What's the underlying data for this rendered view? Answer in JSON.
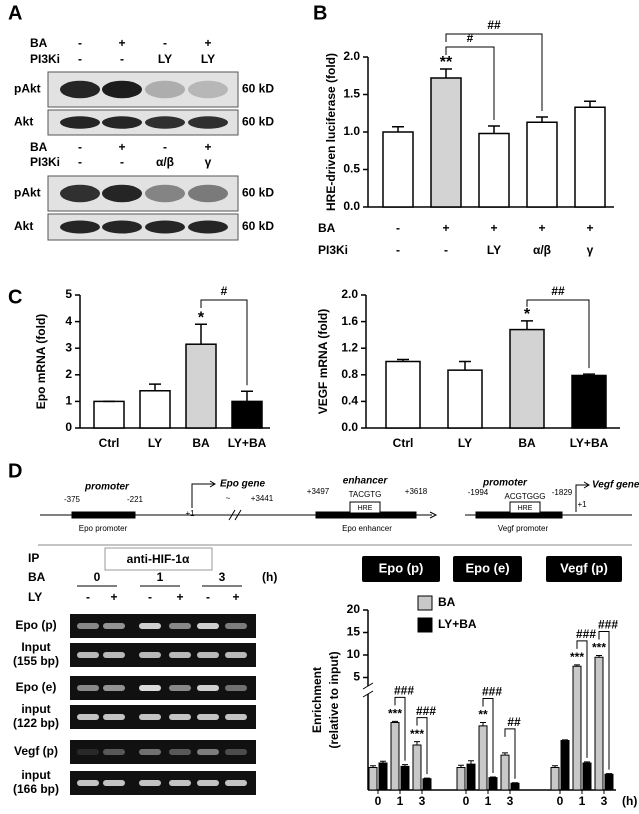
{
  "panel_labels": [
    "A",
    "B",
    "C",
    "D"
  ],
  "blot_a": {
    "panels": [
      {
        "conditions": [
          {
            "label": "BA",
            "values": [
              "-",
              "+",
              "-",
              "+"
            ]
          },
          {
            "label": "PI3Ki",
            "values": [
              "-",
              "-",
              "LY",
              "LY"
            ]
          }
        ],
        "bands": [
          {
            "label": "pAkt",
            "size": "60 kD"
          },
          {
            "label": "Akt",
            "size": "60 kD"
          }
        ]
      },
      {
        "conditions": [
          {
            "label": "BA",
            "values": [
              "-",
              "+",
              "-",
              "+"
            ]
          },
          {
            "label": "PI3Ki",
            "values": [
              "-",
              "-",
              "α/β",
              "γ"
            ]
          }
        ],
        "bands": [
          {
            "label": "pAkt",
            "size": "60 kD"
          },
          {
            "label": "Akt",
            "size": "60 kD"
          }
        ]
      }
    ]
  },
  "chart_data": [
    {
      "type": "bar",
      "y_label": "HRE-driven luciferase (fold)",
      "categories": [
        null,
        null,
        null,
        null,
        null
      ],
      "values": [
        1.0,
        1.72,
        0.98,
        1.13,
        1.33
      ],
      "errors": [
        0.07,
        0.12,
        0.1,
        0.07,
        0.08
      ],
      "colors": [
        "#ffffff",
        "#d3d3d3",
        "#ffffff",
        "#ffffff",
        "#ffffff"
      ],
      "ylim": [
        0,
        2.0
      ],
      "yticks": [
        {
          "value": 0,
          "label": "0.0"
        },
        0.5,
        {
          "value": 1,
          "label": "1.0"
        },
        1.5,
        {
          "value": 2,
          "label": "2.0"
        }
      ],
      "condition_rows": [
        {
          "label": "BA",
          "values": [
            "-",
            "+",
            "+",
            "+",
            "+"
          ]
        },
        {
          "label": "PI3Ki",
          "values": [
            "-",
            "-",
            "LY",
            "α/β",
            "γ"
          ]
        }
      ],
      "annotations": [
        "**",
        "#",
        "##"
      ]
    },
    {
      "type": "bar",
      "y_label": "Epo mRNA (fold)",
      "categories": [
        "Ctrl",
        "LY",
        "BA",
        "LY+BA"
      ],
      "values": [
        1.0,
        1.4,
        3.15,
        1.0
      ],
      "errors": [
        0,
        0.25,
        0.75,
        0.38
      ],
      "colors": [
        "#ffffff",
        "#ffffff",
        "#d3d3d3",
        "#000000"
      ],
      "ylim": [
        0,
        5
      ],
      "yticks": [
        0,
        1,
        2,
        3,
        4,
        5
      ],
      "annotations": [
        "*",
        "#"
      ]
    },
    {
      "type": "bar",
      "y_label": "VEGF mRNA (fold)",
      "categories": [
        "Ctrl",
        "LY",
        "BA",
        "LY+BA"
      ],
      "values": [
        1.0,
        0.87,
        1.48,
        0.79
      ],
      "errors": [
        0.03,
        0.13,
        0.13,
        0.02
      ],
      "colors": [
        "#ffffff",
        "#ffffff",
        "#d3d3d3",
        "#000000"
      ],
      "ylim": [
        0,
        2.0
      ],
      "yticks": [
        {
          "value": 0,
          "label": "0.0"
        },
        0.4,
        0.8,
        1.2,
        1.6,
        {
          "value": 2,
          "label": "2.0"
        }
      ],
      "annotations": [
        "*",
        "##"
      ]
    },
    {
      "type": "grouped-bar",
      "y_label": [
        "Enrichment",
        "(relative to input)"
      ],
      "groups": [
        "Epo (p)",
        "Epo (e)",
        "Vegf (p)"
      ],
      "categories": [
        "0",
        "1",
        "3",
        "0",
        "1",
        "3",
        "0",
        "1",
        "3"
      ],
      "x_unit": "(h)",
      "series": [
        {
          "name": "BA",
          "color": "#c8c8c8",
          "values": [
            1.0,
            3.0,
            2.0,
            1.0,
            2.85,
            1.55,
            1.0,
            7.5,
            9.5
          ],
          "errors": [
            0.08,
            0.05,
            0.15,
            0.1,
            0.15,
            0.1,
            0.08,
            0.3,
            0.4
          ]
        },
        {
          "name": "LY+BA",
          "color": "#000000",
          "values": [
            1.2,
            1.05,
            0.5,
            1.15,
            0.55,
            0.3,
            2.2,
            1.2,
            0.7
          ],
          "errors": [
            0.08,
            0.08,
            0.03,
            0.15,
            0.03,
            0.02,
            0.03,
            0.05,
            0.03
          ]
        }
      ],
      "ylim": [
        0,
        20
      ],
      "axis_break": 4,
      "yticks": [
        5,
        10,
        15,
        20
      ],
      "annotations": [
        "###",
        "***",
        "###",
        "***",
        "###",
        "**",
        "##",
        "###",
        "###",
        "***",
        "***"
      ]
    }
  ],
  "gene_diagram": {
    "epo": {
      "promoter_label": "promoter",
      "promoter_start": "-375",
      "promoter_end": "-221",
      "promoter_box": "Epo promoter",
      "gene_label": "Epo gene",
      "tss": "+1",
      "tilde": "~",
      "gene_end": "+3441",
      "enhancer_label": "enhancer",
      "enhancer_start": "+3497",
      "enhancer_end": "+3618",
      "motif": "TACGTG",
      "hre": "HRE",
      "enhancer_box": "Epo enhancer"
    },
    "vegf": {
      "promoter_label": "promoter",
      "promoter_start": "-1994",
      "promoter_end": "-1829",
      "motif": "ACGTGGG",
      "hre": "HRE",
      "promoter_box": "Vegf promoter",
      "gene_label": "Vegf gene",
      "tss": "+1"
    }
  },
  "chip": {
    "ip_label": "IP",
    "antibody": "anti-HIF-1α",
    "ba_label": "BA",
    "times": [
      "0",
      "1",
      "3"
    ],
    "time_unit": "(h)",
    "ly_label": "LY",
    "ly_states": [
      "-",
      "+",
      "-",
      "+",
      "-",
      "+"
    ],
    "rows": [
      {
        "name": "Epo (p)"
      },
      {
        "name": "Input",
        "size": "(155 bp)"
      },
      {
        "name": "Epo (e)"
      },
      {
        "name": "input",
        "size": "(122 bp)"
      },
      {
        "name": "Vegf (p)"
      },
      {
        "name": "input",
        "size": "(166 bp)"
      }
    ]
  }
}
